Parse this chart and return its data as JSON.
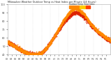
{
  "bg_color": "#ffffff",
  "plot_bg_color": "#ffffff",
  "scatter_color_temp": "#dd2200",
  "scatter_color_hi": "#ff8800",
  "legend_color_1": "#ff8800",
  "legend_color_2": "#ffcc00",
  "legend_color_3": "#ff4400",
  "grid_color": "#cccccc",
  "grid_linestyle": "dotted",
  "dot_size": 1.5,
  "title_text": "Milwaukee Weather Outdoor Temp vs Heat Index per Minute (24 Hours)",
  "title_color": "#222222",
  "tick_color": "#444444",
  "ylim_min": 40,
  "ylim_max": 100,
  "xlim_min": 0,
  "xlim_max": 1440,
  "temp_curve": {
    "hour_values": [
      0,
      1,
      2,
      3,
      4,
      5,
      6,
      7,
      8,
      9,
      10,
      11,
      12,
      13,
      14,
      15,
      16,
      17,
      18,
      19,
      20,
      21,
      22,
      23,
      24
    ],
    "temp_f": [
      55,
      52,
      49,
      46,
      43,
      41,
      40,
      40,
      42,
      47,
      54,
      62,
      70,
      77,
      83,
      88,
      90,
      88,
      84,
      78,
      72,
      67,
      63,
      59,
      56
    ]
  },
  "hi_curve": {
    "hour_values": [
      0,
      1,
      2,
      3,
      4,
      5,
      6,
      7,
      8,
      9,
      10,
      11,
      12,
      13,
      14,
      15,
      16,
      17,
      18,
      19,
      20,
      21,
      22,
      23,
      24
    ],
    "hi_f": [
      55,
      52,
      49,
      46,
      43,
      41,
      40,
      40,
      42,
      47,
      54,
      62,
      71,
      80,
      87,
      93,
      95,
      92,
      87,
      79,
      73,
      68,
      64,
      60,
      57
    ]
  },
  "xtick_hours": [
    0,
    1,
    2,
    3,
    4,
    5,
    6,
    7,
    8,
    9,
    10,
    11,
    12,
    13,
    14,
    15,
    16,
    17,
    18,
    19,
    20,
    21,
    22,
    23
  ],
  "xtick_labels": [
    "00",
    "01",
    "02",
    "03",
    "04",
    "05",
    "06",
    "07",
    "08",
    "09",
    "10",
    "11",
    "12",
    "13",
    "14",
    "15",
    "16",
    "17",
    "18",
    "19",
    "20",
    "21",
    "22",
    "23"
  ],
  "ytick_vals": [
    40,
    50,
    60,
    70,
    80,
    90,
    100
  ],
  "ytick_labels": [
    "40",
    "50",
    "60",
    "70",
    "80",
    "90",
    "100"
  ],
  "vgrid_hours": [
    0,
    2,
    4,
    6,
    8,
    10,
    12,
    14,
    16,
    18,
    20,
    22,
    24
  ],
  "noise_seed": 7
}
